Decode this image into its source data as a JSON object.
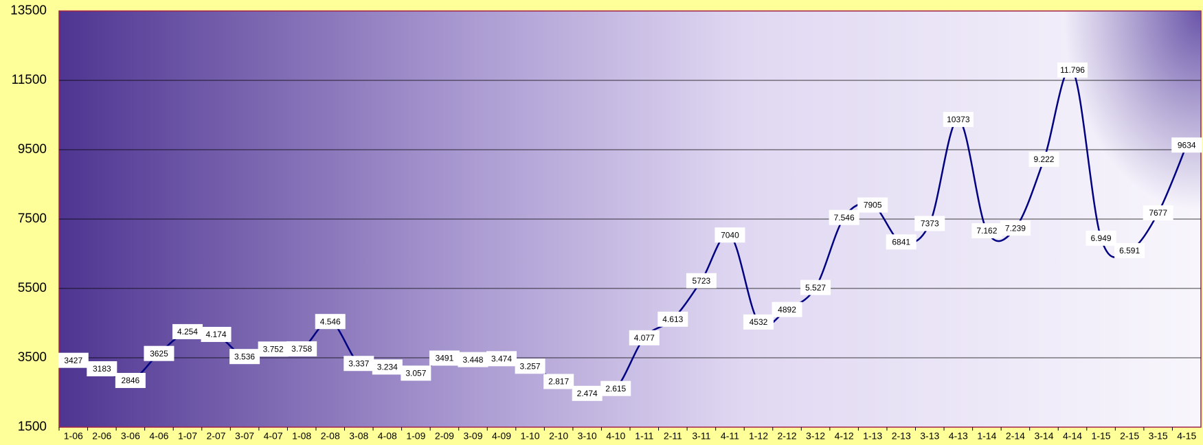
{
  "chart_data": {
    "type": "line",
    "categories": [
      "1-06",
      "2-06",
      "3-06",
      "4-06",
      "1-07",
      "2-07",
      "3-07",
      "4-07",
      "1-08",
      "2-08",
      "3-08",
      "4-08",
      "1-09",
      "2-09",
      "3-09",
      "4-09",
      "1-10",
      "2-10",
      "3-10",
      "4-10",
      "1-11",
      "2-11",
      "3-11",
      "4-11",
      "1-12",
      "2-12",
      "3-12",
      "4-12",
      "1-13",
      "2-13",
      "3-13",
      "4-13",
      "1-14",
      "2-14",
      "3-14",
      "4-14",
      "1-15",
      "2-15",
      "3-15",
      "4-15"
    ],
    "series": [
      {
        "color": "#000080",
        "values": [
          3427,
          3183,
          2846,
          3625,
          4254,
          4174,
          3536,
          3752,
          3758,
          4546,
          3337,
          3234,
          3057,
          3491,
          3448,
          3474,
          3257,
          2817,
          2474,
          2615,
          4077,
          4613,
          5723,
          7040,
          4532,
          4892,
          5527,
          7546,
          7905,
          6841,
          7373,
          10373,
          7162,
          7239,
          9222,
          11796,
          6949,
          6591,
          7677,
          9634
        ],
        "value_labels": [
          "3427",
          "3183",
          "2846",
          "3625",
          "4.254",
          "4.174",
          "3.536",
          "3.752",
          "3.758",
          "4.546",
          "3.337",
          "3.234",
          "3.057",
          "3491",
          "3.448",
          "3.474",
          "3.257",
          "2.817",
          "2.474",
          "2.615",
          "4.077",
          "4.613",
          "5723",
          "7040",
          "4532",
          "4892",
          "5.527",
          "7.546",
          "7905",
          "6841",
          "7373",
          "10373",
          "7.162",
          "7.239",
          "9.222",
          "11.796",
          "6.949",
          "6.591",
          "7677",
          "9634"
        ]
      }
    ],
    "ylim": [
      1500,
      13500
    ],
    "yticks": [
      1500,
      3500,
      5500,
      7500,
      9500,
      11500,
      13500
    ],
    "grid": true
  }
}
